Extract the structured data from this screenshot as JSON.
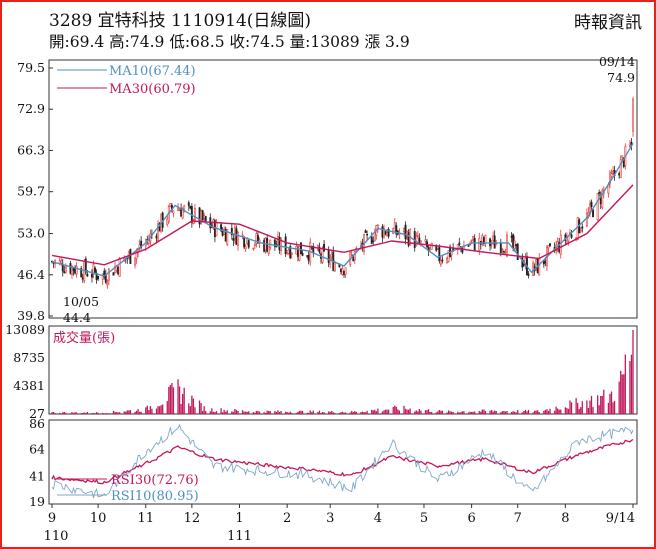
{
  "header": {
    "title": "3289 宜特科技 1110914(日線圖)",
    "stats": "開:69.4 高:74.9 低:68.5 收:74.5 量:13089 漲 3.9",
    "source": "時報資訊"
  },
  "colors": {
    "frame": "#e8211d",
    "up": "#e53935",
    "down": "#222222",
    "ma10": "#4f8fc0",
    "ma30": "#c2185b",
    "volume": "#c2185b",
    "rsi30": "#c2185b",
    "rsi10": "#7fa7c9"
  },
  "chart_data": [
    {
      "type": "candlestick",
      "title": "3289 宜特科技 1110914(日線圖)",
      "ylim": [
        39.8,
        79.5
      ],
      "yticks": [
        "79.5",
        "72.9",
        "66.3",
        "59.7",
        "53.0",
        "46.4",
        "39.8"
      ],
      "xticks": [
        "9",
        "10",
        "11",
        "12",
        "1",
        "2",
        "3",
        "4",
        "5",
        "6",
        "7",
        "8",
        "9/14"
      ],
      "xticks_sub": {
        "9": "110",
        "1": "111"
      },
      "legend": [
        {
          "name": "MA10(67.44)",
          "color": "#4f8fc0"
        },
        {
          "name": "MA30(60.79)",
          "color": "#c2185b"
        }
      ],
      "annotations": [
        {
          "label": "10/05",
          "value": "44.4"
        },
        {
          "label": "09/14",
          "value": "74.9"
        }
      ],
      "series": [
        {
          "name": "MA10",
          "x": [
            "2021-09-01",
            "2021-10-05",
            "2021-11-01",
            "2021-11-20",
            "2021-12-15",
            "2022-01-15",
            "2022-02-15",
            "2022-03-10",
            "2022-04-01",
            "2022-04-20",
            "2022-05-10",
            "2022-06-01",
            "2022-06-25",
            "2022-07-10",
            "2022-07-25",
            "2022-08-15",
            "2022-09-01",
            "2022-09-14"
          ],
          "values": [
            48.5,
            46.2,
            51.5,
            57.5,
            54.0,
            51.5,
            50.2,
            47.8,
            53.8,
            52.8,
            49.2,
            51.5,
            51.5,
            46.8,
            50.5,
            55.5,
            62.0,
            67.44
          ]
        },
        {
          "name": "MA30",
          "x": [
            "2021-09-01",
            "2021-10-05",
            "2021-11-01",
            "2021-12-01",
            "2022-01-01",
            "2022-02-01",
            "2022-03-10",
            "2022-04-10",
            "2022-05-10",
            "2022-06-10",
            "2022-07-15",
            "2022-08-15",
            "2022-09-14"
          ],
          "values": [
            49.5,
            48.0,
            50.5,
            55.0,
            54.5,
            51.5,
            50.0,
            51.8,
            51.0,
            50.0,
            49.0,
            53.0,
            60.79
          ]
        }
      ]
    },
    {
      "type": "bar",
      "title": "成交量(張)",
      "ylim": [
        0,
        13089
      ],
      "yticks": [
        "13089",
        "8735",
        "4381",
        "27"
      ],
      "x": [
        "2021-09-01",
        "2021-10-05",
        "2021-11-01",
        "2021-11-22",
        "2021-12-10",
        "2022-01-10",
        "2022-02-15",
        "2022-03-15",
        "2022-04-15",
        "2022-05-15",
        "2022-06-15",
        "2022-07-15",
        "2022-07-30",
        "2022-08-15",
        "2022-08-30",
        "2022-09-05",
        "2022-09-09",
        "2022-09-14"
      ],
      "values": [
        300,
        250,
        900,
        4600,
        900,
        500,
        450,
        400,
        1100,
        450,
        600,
        500,
        1500,
        2400,
        3500,
        5200,
        8700,
        13089
      ]
    },
    {
      "type": "line",
      "title": "RSI",
      "ylim": [
        19,
        86
      ],
      "yticks": [
        "86",
        "64",
        "41",
        "19"
      ],
      "legend": [
        {
          "name": "RSI30(72.76)",
          "color": "#c2185b"
        },
        {
          "name": "RSI10(80.95)",
          "color": "#7fa7c9"
        }
      ],
      "series": [
        {
          "name": "RSI30",
          "x": [
            "2021-09-01",
            "2021-10-05",
            "2021-11-01",
            "2021-11-22",
            "2021-12-15",
            "2022-01-15",
            "2022-02-15",
            "2022-03-15",
            "2022-04-10",
            "2022-05-10",
            "2022-06-10",
            "2022-07-10",
            "2022-08-10",
            "2022-09-14"
          ],
          "values": [
            40.0,
            36.0,
            52.0,
            66.0,
            56.0,
            51.0,
            47.0,
            42.0,
            58.0,
            50.0,
            56.0,
            44.0,
            60.0,
            72.76
          ]
        },
        {
          "name": "RSI10",
          "x": [
            "2021-09-01",
            "2021-10-05",
            "2021-11-01",
            "2021-11-22",
            "2021-12-15",
            "2022-01-15",
            "2022-02-15",
            "2022-03-15",
            "2022-04-10",
            "2022-05-10",
            "2022-06-10",
            "2022-07-10",
            "2022-08-10",
            "2022-09-14"
          ],
          "values": [
            35.0,
            24.0,
            63.0,
            84.0,
            50.0,
            46.0,
            42.0,
            30.0,
            70.0,
            38.0,
            63.0,
            26.0,
            72.0,
            80.95
          ]
        }
      ]
    }
  ]
}
